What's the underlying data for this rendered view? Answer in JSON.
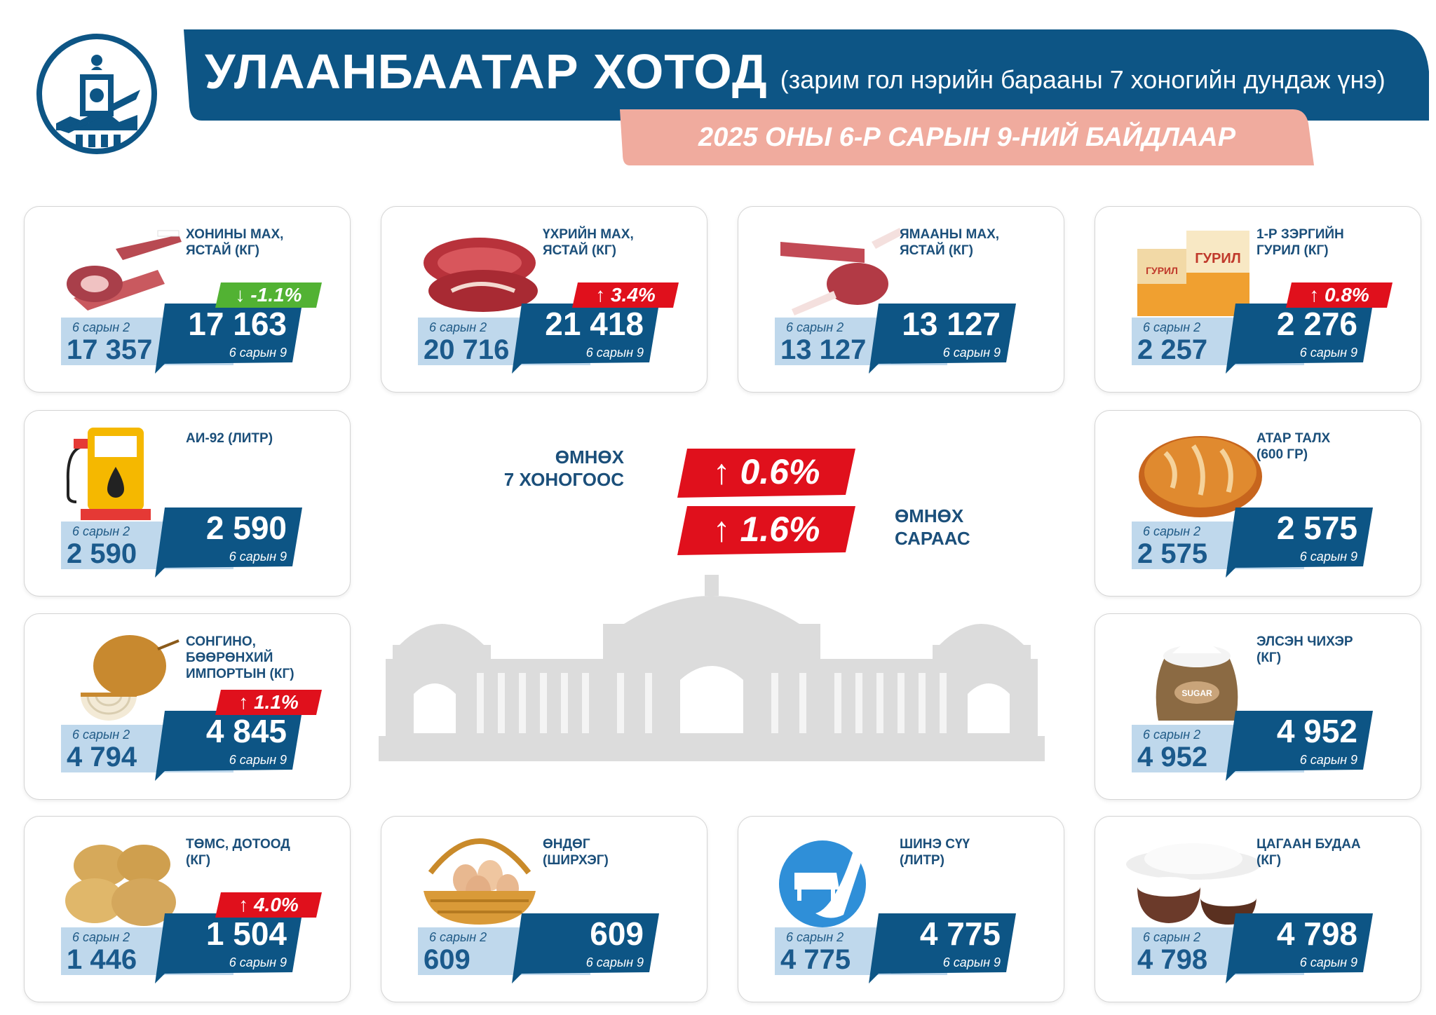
{
  "header": {
    "title": "УЛААНБААТАР ХОТОД",
    "subtitle": "(зарим гол нэрийн барааны 7 хоногийн дундаж үнэ)",
    "date": "2025 ОНЫ 6-Р САРЫН 9-НИЙ БАЙДЛААР"
  },
  "colors": {
    "navy": "#0d5585",
    "light_blue": "#bfd8ec",
    "salmon": "#f0ab9e",
    "red": "#e0101c",
    "green": "#52b233"
  },
  "labels": {
    "prev_date": "6 сарын 2",
    "cur_date": "6 сарын 9"
  },
  "summary": {
    "week_label": "ӨМНӨХ\n7 ХОНОГООС",
    "week_change": "↑ 0.6%",
    "month_label": "ӨМНӨХ\nСАРААС",
    "month_change": "↑ 1.6%"
  },
  "items": [
    {
      "name": "ХОНИНЫ МАХ,\nЯСТАЙ (КГ)",
      "icon": "mutton-icon",
      "prev": "17 357",
      "cur": "17 163",
      "change": "↓ -1.1%",
      "direction": "down"
    },
    {
      "name": "ҮХРИЙН МАХ,\nЯСТАЙ (КГ)",
      "icon": "beef-icon",
      "prev": "20 716",
      "cur": "21 418",
      "change": "↑ 3.4%",
      "direction": "up"
    },
    {
      "name": "ЯМААНЫ МАХ,\nЯСТАЙ (КГ)",
      "icon": "goat-meat-icon",
      "prev": "13 127",
      "cur": "13 127",
      "change": "",
      "direction": "none"
    },
    {
      "name": "1-Р ЗЭРГИЙН\nГУРИЛ (КГ)",
      "icon": "flour-icon",
      "prev": "2 257",
      "cur": "2 276",
      "change": "↑ 0.8%",
      "direction": "up",
      "flour_label": "ГУРИЛ"
    },
    {
      "name": "АИ-92 (ЛИТР)",
      "icon": "fuel-pump-icon",
      "prev": "2 590",
      "cur": "2 590",
      "change": "",
      "direction": "none"
    },
    {
      "name": "АТАР ТАЛХ\n(600 ГР)",
      "icon": "bread-icon",
      "prev": "2 575",
      "cur": "2 575",
      "change": "",
      "direction": "none"
    },
    {
      "name": "СОНГИНО,\nБӨӨРӨНХИЙ\nИМПОРТЫН (КГ)",
      "icon": "onion-icon",
      "prev": "4 794",
      "cur": "4 845",
      "change": "↑ 1.1%",
      "direction": "up"
    },
    {
      "name": "ЭЛСЭН ЧИХЭР\n(КГ)",
      "icon": "sugar-sack-icon",
      "prev": "4 952",
      "cur": "4 952",
      "change": "",
      "direction": "none",
      "sack_label": "SUGAR"
    },
    {
      "name": "ТӨМС, ДОТООД\n(КГ)",
      "icon": "potato-icon",
      "prev": "1 446",
      "cur": "1 504",
      "change": "↑ 4.0%",
      "direction": "up"
    },
    {
      "name": "ӨНДӨГ\n(ШИРХЭГ)",
      "icon": "egg-basket-icon",
      "prev": "609",
      "cur": "609",
      "change": "",
      "direction": "none"
    },
    {
      "name": "ШИНЭ СҮҮ\n(ЛИТР)",
      "icon": "milk-icon",
      "prev": "4 775",
      "cur": "4 775",
      "change": "",
      "direction": "none"
    },
    {
      "name": "ЦАГААН БУДАА\n(КГ)",
      "icon": "rice-icon",
      "prev": "4 798",
      "cur": "4 798",
      "change": "",
      "direction": "none"
    }
  ]
}
